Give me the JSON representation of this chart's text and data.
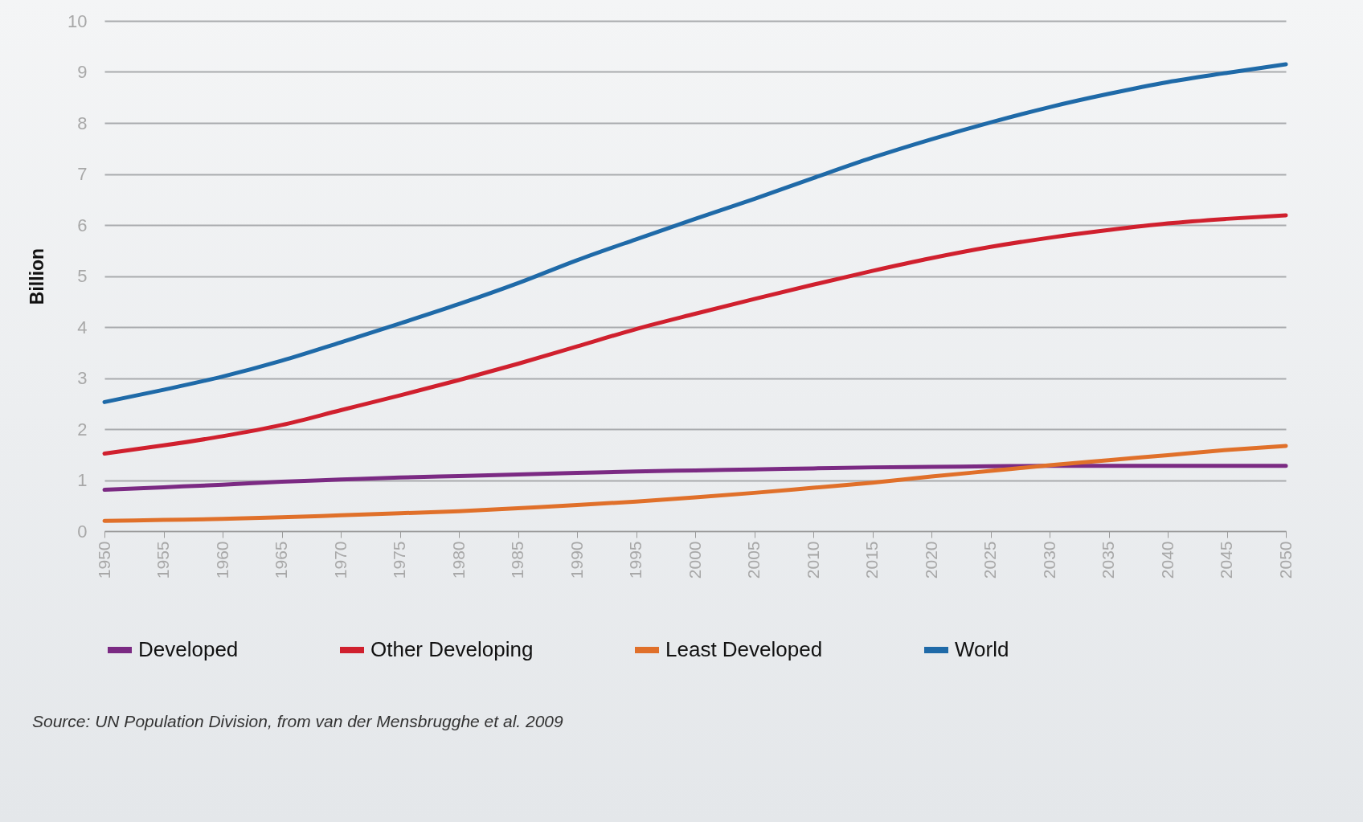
{
  "chart_data": {
    "type": "line",
    "ylabel": "Billion",
    "x": [
      1950,
      1955,
      1960,
      1965,
      1970,
      1975,
      1980,
      1985,
      1990,
      1995,
      2000,
      2005,
      2010,
      2015,
      2020,
      2025,
      2030,
      2035,
      2040,
      2045,
      2050
    ],
    "series": [
      {
        "name": "Developed",
        "color": "#7b2a83",
        "values": [
          0.81,
          0.86,
          0.91,
          0.97,
          1.01,
          1.05,
          1.08,
          1.11,
          1.14,
          1.17,
          1.19,
          1.21,
          1.23,
          1.25,
          1.26,
          1.27,
          1.28,
          1.28,
          1.28,
          1.28,
          1.28
        ]
      },
      {
        "name": "Other Developing",
        "color": "#d0202e",
        "values": [
          1.52,
          1.68,
          1.86,
          2.08,
          2.37,
          2.66,
          2.96,
          3.28,
          3.62,
          3.96,
          4.26,
          4.55,
          4.83,
          5.1,
          5.35,
          5.57,
          5.75,
          5.9,
          6.03,
          6.12,
          6.19
        ]
      },
      {
        "name": "Least Developed",
        "color": "#e0702a",
        "values": [
          0.2,
          0.22,
          0.24,
          0.27,
          0.31,
          0.35,
          0.39,
          0.45,
          0.51,
          0.58,
          0.66,
          0.75,
          0.85,
          0.95,
          1.07,
          1.18,
          1.29,
          1.39,
          1.49,
          1.59,
          1.67
        ]
      },
      {
        "name": "World",
        "color": "#1f6aa8",
        "values": [
          2.53,
          2.77,
          3.03,
          3.34,
          3.7,
          4.07,
          4.45,
          4.86,
          5.31,
          5.72,
          6.12,
          6.51,
          6.92,
          7.32,
          7.68,
          8.01,
          8.31,
          8.57,
          8.8,
          8.98,
          9.15
        ]
      }
    ],
    "xlim": [
      1950,
      2050
    ],
    "xticks": [
      1950,
      1955,
      1960,
      1965,
      1970,
      1975,
      1980,
      1985,
      1990,
      1995,
      2000,
      2005,
      2010,
      2015,
      2020,
      2025,
      2030,
      2035,
      2040,
      2045,
      2050
    ],
    "ylim": [
      0,
      10
    ],
    "yticks": [
      0,
      1,
      2,
      3,
      4,
      5,
      6,
      7,
      8,
      9,
      10
    ],
    "grid": "y",
    "legend": "bottom",
    "line_style": "solid",
    "annotations": [
      "Source: UN Population Division, from van der Mensbrugghe et al. 2009"
    ]
  }
}
